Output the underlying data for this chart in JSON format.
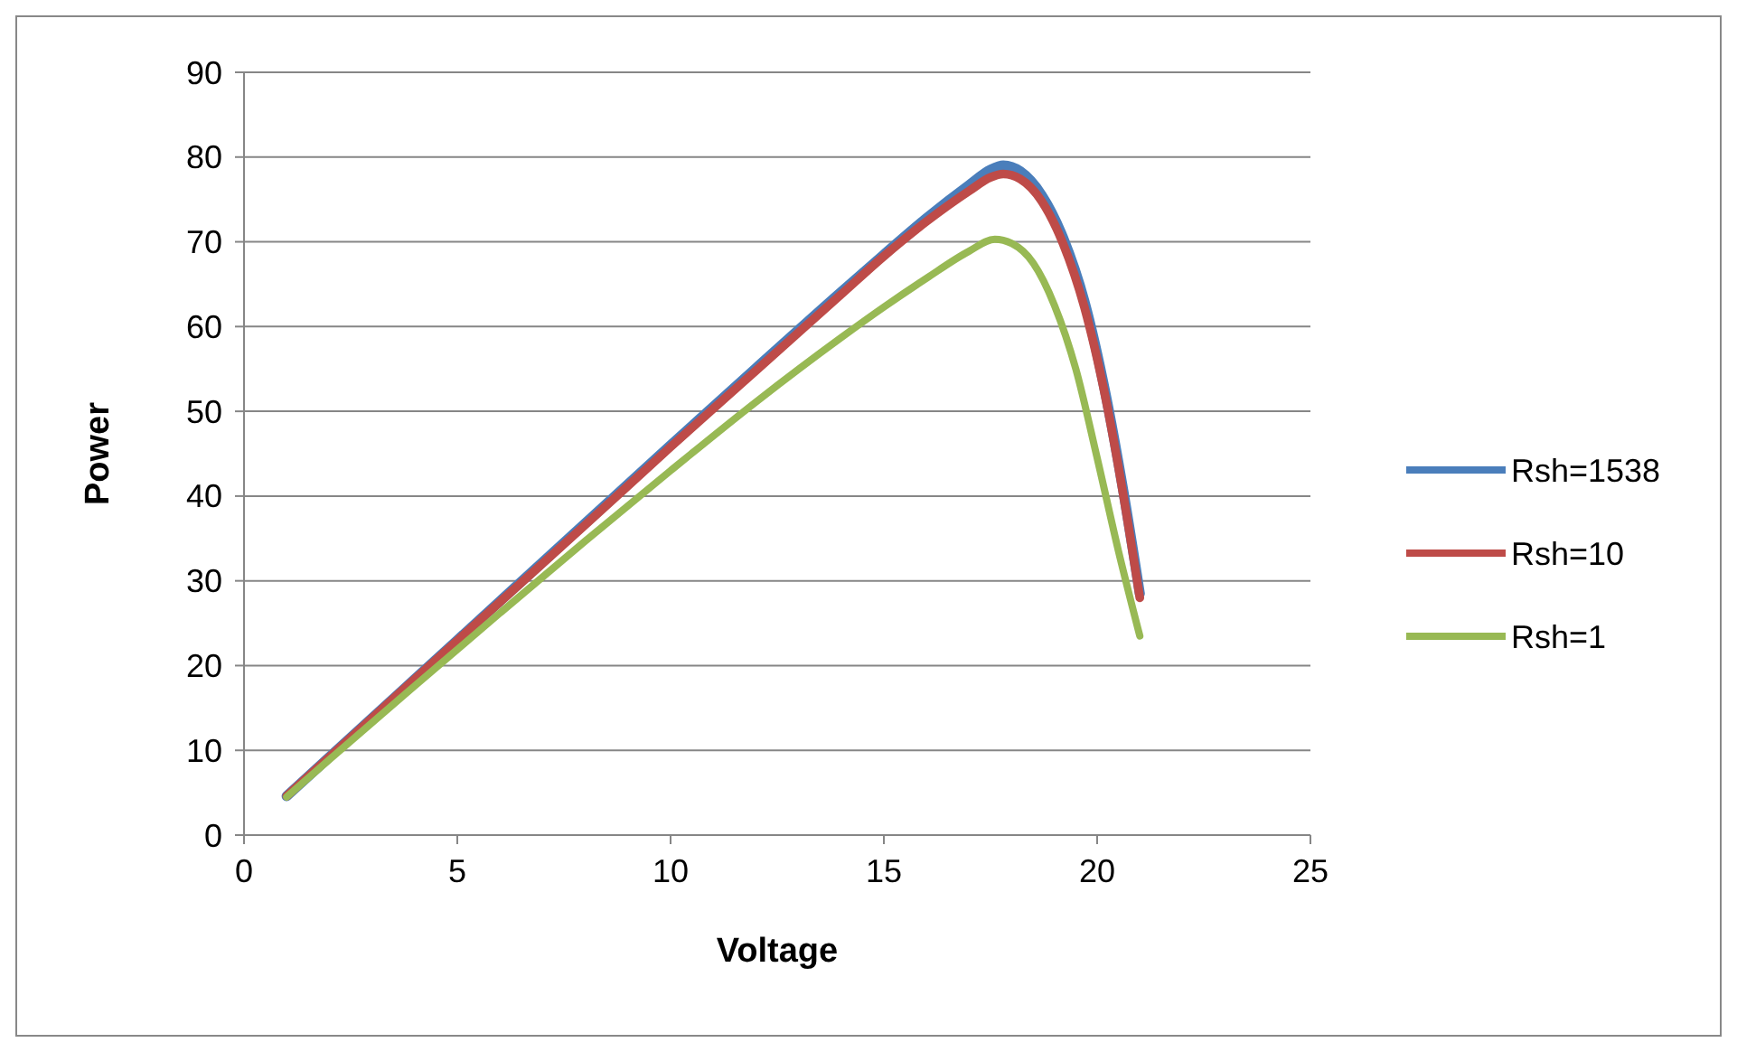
{
  "chart_data": {
    "type": "line",
    "xlabel": "Voltage",
    "ylabel": "Power",
    "xlim": [
      0,
      25
    ],
    "xticks": [
      0,
      5,
      10,
      15,
      20,
      25
    ],
    "ylim": [
      0,
      90
    ],
    "yticks": [
      0,
      10,
      20,
      30,
      40,
      50,
      60,
      70,
      80,
      90
    ],
    "grid": "y",
    "legend": "right",
    "marker": "none",
    "line_style": "solid",
    "series": [
      {
        "name": "Rsh=1538",
        "color": "#4a7ebb",
        "x": [
          1,
          2,
          4,
          6,
          8,
          10,
          12,
          14,
          15,
          16,
          17,
          17.5,
          17.8,
          18.2,
          18.7,
          19.2,
          19.7,
          20.2,
          20.6,
          21
        ],
        "values": [
          4.6,
          9.2,
          18.4,
          27.6,
          36.8,
          46,
          55.1,
          64.1,
          68.5,
          72.8,
          76.7,
          78.5,
          79,
          78.3,
          75.5,
          70.5,
          63,
          52,
          41,
          28.5
        ]
      },
      {
        "name": "Rsh=10",
        "color": "#be4b48",
        "x": [
          1,
          2,
          4,
          6,
          8,
          10,
          12,
          14,
          15,
          16,
          17,
          17.5,
          17.8,
          18.2,
          18.7,
          19.2,
          19.7,
          20.2,
          20.6,
          21
        ],
        "values": [
          4.6,
          9.2,
          18.4,
          27.5,
          36.6,
          45.8,
          54.8,
          63.8,
          68.3,
          72.4,
          76,
          77.6,
          78,
          77.4,
          74.8,
          69.8,
          62.3,
          51.5,
          40.5,
          28
        ]
      },
      {
        "name": "Rsh=1",
        "color": "#98b954",
        "x": [
          1,
          2,
          4,
          6,
          8,
          10,
          12,
          14,
          15,
          16,
          17,
          17.6,
          18,
          18.5,
          19,
          19.5,
          20,
          20.5,
          21
        ],
        "values": [
          4.5,
          8.9,
          17.6,
          26.2,
          34.7,
          43,
          51.1,
          58.7,
          62.3,
          65.7,
          68.9,
          70.3,
          69.8,
          67.5,
          62.5,
          55,
          44.5,
          33.5,
          23.5
        ]
      }
    ]
  }
}
